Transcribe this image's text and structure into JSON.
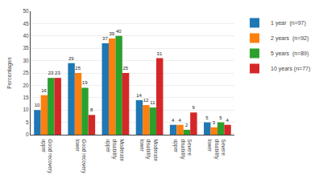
{
  "chart_data": {
    "type": "bar",
    "categories": [
      "Good recovery\nupper",
      "Good recovery\nlower",
      "Moderate\ndisability\nupper",
      "Moderate\ndisability\nlower",
      "Severe\ndisability\nupper",
      "Severe\ndisability\nlower"
    ],
    "series": [
      {
        "name": "1 year  (n=97)",
        "values": [
          10,
          29,
          37,
          14,
          4,
          5
        ]
      },
      {
        "name": "2 years  (n=92)",
        "values": [
          16,
          25,
          39,
          12,
          4,
          3
        ]
      },
      {
        "name": "5 years  (n=89)",
        "values": [
          23,
          19,
          40,
          11,
          2,
          5
        ]
      },
      {
        "name": "10 years (n=77)",
        "values": [
          23,
          8,
          25,
          31,
          9,
          4
        ]
      }
    ],
    "ylabel": "Percentages",
    "ylim": [
      0,
      50
    ],
    "yticks": [
      0,
      5,
      10,
      15,
      20,
      25,
      30,
      35,
      40,
      45,
      50
    ],
    "grid": true,
    "legend": "right",
    "data_labels": true
  }
}
